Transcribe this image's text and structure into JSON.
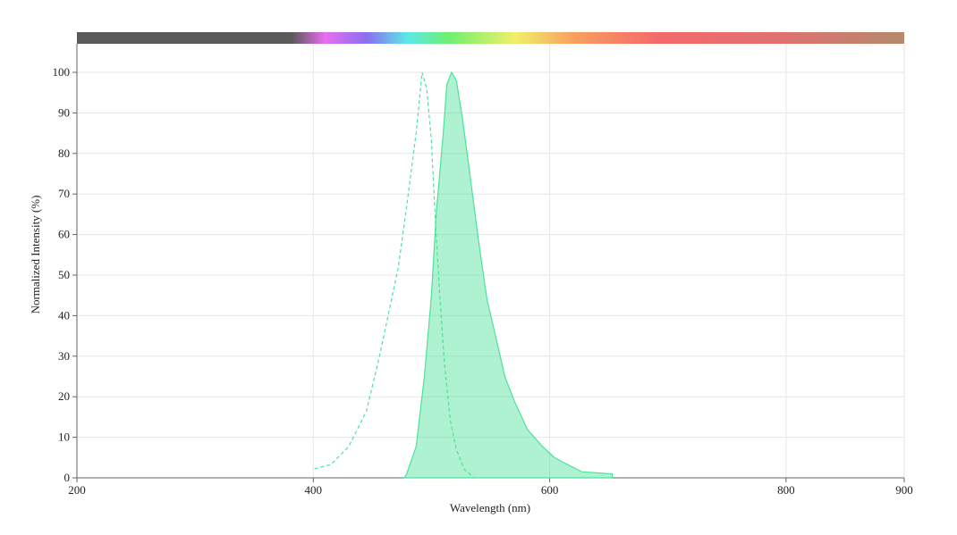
{
  "chart_data": {
    "type": "line",
    "xlabel": "Wavelength (nm)",
    "ylabel": "Normalized Intensity (%)",
    "xlim": [
      200,
      900
    ],
    "ylim": [
      0,
      100
    ],
    "xticks": [
      200,
      400,
      600,
      800,
      900
    ],
    "yticks": [
      0,
      10,
      20,
      30,
      40,
      50,
      60,
      70,
      80,
      90,
      100
    ],
    "grid": true,
    "series": [
      {
        "color": "#4be39a",
        "dashed": true,
        "fill": false,
        "x": [
          401,
          415,
          430,
          445,
          456,
          464,
          472,
          479,
          487,
          492,
          496,
          500,
          503,
          507,
          511,
          516,
          521,
          528,
          536
        ],
        "values": [
          2.2,
          3.3,
          7.7,
          16.5,
          30,
          41,
          52,
          67,
          85,
          100,
          96,
          83,
          65,
          45,
          28,
          14,
          7,
          2,
          0
        ]
      },
      {
        "color": "#4be39a",
        "dashed": false,
        "fill": true,
        "x": [
          477,
          479,
          487,
          494,
          500,
          504,
          510,
          513,
          517,
          521,
          526,
          532,
          540,
          547,
          555,
          562,
          570,
          581,
          593,
          604,
          615,
          627,
          653,
          653
        ],
        "values": [
          0,
          1,
          7.7,
          25,
          45,
          65,
          85,
          97,
          100,
          98,
          89,
          76,
          58,
          44,
          34,
          25,
          19,
          12,
          8,
          5,
          3.3,
          1.5,
          1,
          0
        ]
      }
    ]
  }
}
